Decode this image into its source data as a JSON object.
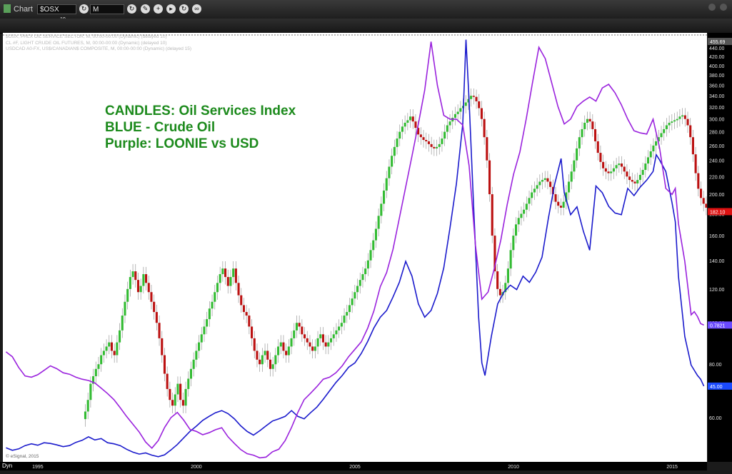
{
  "app": {
    "title": "Chart",
    "symbol": "$OSX",
    "symbol_superscript": "10",
    "interval": "M",
    "dyn_label": "Dyn",
    "copyright": "© eSignal, 2015"
  },
  "colors": {
    "candle_up": "#33bb33",
    "candle_down": "#bb1111",
    "crude": "#1a1acc",
    "loonie": "#9a22dd",
    "annotation": "#1c8a1c",
    "osx_tag": "#dd1111",
    "loonie_tag": "#6a4aff",
    "crude_tag": "#1a4aff"
  },
  "legend": [
    "$OSX, PHLX OIL SERVICE SECTOR, M, 00:00-00:00 (Dynamic) (delayed 10)",
    "CL #F, LIGHT CRUDE OIL FUTURES, M, 00:00-00:00 (Dynamic) (delayed 10)",
    "USDCAD A0-FX, US$/CANADIAN$ COMPOSITE, M, 00:00-00:00 (Dynamic) (delayed 15)"
  ],
  "annotation": [
    "CANDLES: Oil Services Index",
    "BLUE - Crude Oil",
    "Purple: LOONIE vs USD"
  ],
  "chart_data": {
    "type": "line",
    "y_scale": "log",
    "ylim": [
      48,
      470
    ],
    "xlim": [
      1993.9,
      2016.1
    ],
    "y_ticks": [
      "440.00",
      "420.00",
      "400.00",
      "380.00",
      "360.00",
      "340.00",
      "320.00",
      "300.00",
      "280.00",
      "260.00",
      "240.00",
      "220.00",
      "200.00",
      "180.00",
      "160.00",
      "140.00",
      "120.00",
      "100.00",
      "80.00",
      "60.00"
    ],
    "y_tick_values": [
      440,
      420,
      400,
      380,
      360,
      340,
      320,
      300,
      280,
      260,
      240,
      220,
      200,
      180,
      160,
      140,
      120,
      100,
      80,
      60
    ],
    "x_ticks": [
      "1995",
      "2000",
      "2005",
      "2010",
      "2015"
    ],
    "x_tick_values": [
      1995,
      2000,
      2005,
      2010,
      2015
    ],
    "top_label": "455.69",
    "last_values": {
      "osx": "182.10",
      "loonie": "0.7821",
      "crude": "45.00"
    },
    "candles": {
      "name": "OSX",
      "x_start": 1996.5,
      "x_step": 0.0833,
      "close": [
        62,
        66,
        72,
        75,
        78,
        80,
        84,
        86,
        88,
        90,
        86,
        84,
        90,
        96,
        104,
        112,
        120,
        128,
        132,
        126,
        118,
        122,
        130,
        124,
        118,
        112,
        106,
        100,
        92,
        84,
        76,
        70,
        66,
        64,
        68,
        72,
        66,
        64,
        70,
        74,
        78,
        82,
        86,
        90,
        94,
        98,
        102,
        108,
        112,
        118,
        124,
        130,
        134,
        128,
        122,
        128,
        134,
        124,
        116,
        110,
        106,
        104,
        98,
        92,
        86,
        82,
        80,
        84,
        86,
        82,
        78,
        80,
        84,
        88,
        90,
        86,
        84,
        88,
        92,
        96,
        100,
        98,
        94,
        92,
        90,
        88,
        86,
        88,
        92,
        94,
        90,
        88,
        90,
        92,
        94,
        96,
        98,
        100,
        104,
        106,
        110,
        114,
        118,
        122,
        126,
        130,
        134,
        140,
        148,
        156,
        166,
        178,
        190,
        204,
        218,
        232,
        246,
        258,
        270,
        280,
        288,
        294,
        298,
        304,
        296,
        286,
        276,
        272,
        268,
        266,
        262,
        258,
        256,
        258,
        262,
        270,
        280,
        290,
        296,
        302,
        308,
        312,
        318,
        322,
        328,
        334,
        340,
        338,
        330,
        318,
        300,
        272,
        240,
        200,
        160,
        132,
        120,
        116,
        118,
        124,
        134,
        148,
        160,
        170,
        176,
        180,
        184,
        190,
        196,
        202,
        206,
        210,
        214,
        216,
        218,
        214,
        208,
        200,
        192,
        188,
        186,
        192,
        202,
        214,
        226,
        240,
        256,
        272,
        284,
        294,
        300,
        296,
        284,
        266,
        250,
        238,
        230,
        226,
        224,
        226,
        230,
        234,
        236,
        232,
        226,
        220,
        216,
        214,
        212,
        216,
        222,
        228,
        236,
        244,
        252,
        260,
        266,
        272,
        278,
        284,
        290,
        294,
        296,
        298,
        300,
        304,
        306,
        300,
        290,
        272,
        248,
        224,
        206,
        196,
        190,
        186,
        184,
        182.1
      ]
    },
    "series": [
      {
        "name": "BLUE - Crude Oil",
        "values": [
          [
            1994.0,
            51.0
          ],
          [
            1994.2,
            50.3
          ],
          [
            1994.4,
            50.7
          ],
          [
            1994.6,
            51.6
          ],
          [
            1994.8,
            52.1
          ],
          [
            1995.0,
            51.7
          ],
          [
            1995.2,
            52.4
          ],
          [
            1995.4,
            52.2
          ],
          [
            1995.6,
            51.8
          ],
          [
            1995.8,
            51.3
          ],
          [
            1996.0,
            51.6
          ],
          [
            1996.2,
            52.5
          ],
          [
            1996.4,
            53.1
          ],
          [
            1996.6,
            54.1
          ],
          [
            1996.8,
            53.2
          ],
          [
            1997.0,
            53.6
          ],
          [
            1997.2,
            52.4
          ],
          [
            1997.4,
            52.1
          ],
          [
            1997.6,
            51.6
          ],
          [
            1997.8,
            50.6
          ],
          [
            1998.0,
            49.8
          ],
          [
            1998.2,
            49.3
          ],
          [
            1998.4,
            49.6
          ],
          [
            1998.6,
            49.0
          ],
          [
            1998.8,
            48.6
          ],
          [
            1999.0,
            49.1
          ],
          [
            1999.2,
            50.4
          ],
          [
            1999.4,
            51.9
          ],
          [
            1999.6,
            53.8
          ],
          [
            1999.8,
            55.7
          ],
          [
            2000.0,
            57.3
          ],
          [
            2000.2,
            59.1
          ],
          [
            2000.4,
            60.4
          ],
          [
            2000.6,
            61.6
          ],
          [
            2000.8,
            62.3
          ],
          [
            2001.0,
            61.3
          ],
          [
            2001.2,
            59.6
          ],
          [
            2001.4,
            57.4
          ],
          [
            2001.6,
            55.7
          ],
          [
            2001.8,
            54.6
          ],
          [
            2002.0,
            55.9
          ],
          [
            2002.2,
            57.4
          ],
          [
            2002.4,
            58.9
          ],
          [
            2002.6,
            59.6
          ],
          [
            2002.8,
            60.4
          ],
          [
            2003.0,
            62.3
          ],
          [
            2003.2,
            60.4
          ],
          [
            2003.4,
            59.6
          ],
          [
            2003.6,
            61.6
          ],
          [
            2003.8,
            63.5
          ],
          [
            2004.0,
            66.2
          ],
          [
            2004.2,
            69.3
          ],
          [
            2004.4,
            72.5
          ],
          [
            2004.6,
            75.3
          ],
          [
            2004.8,
            78.7
          ],
          [
            2005.0,
            80.6
          ],
          [
            2005.2,
            84.8
          ],
          [
            2005.4,
            90.4
          ],
          [
            2005.6,
            97.3
          ],
          [
            2005.8,
            103.1
          ],
          [
            2006.0,
            106.9
          ],
          [
            2006.2,
            114.9
          ],
          [
            2006.4,
            124.4
          ],
          [
            2006.6,
            139.3
          ],
          [
            2006.8,
            128.6
          ],
          [
            2007.0,
            110.8
          ],
          [
            2007.2,
            103.1
          ],
          [
            2007.4,
            106.9
          ],
          [
            2007.6,
            117.2
          ],
          [
            2007.8,
            134.5
          ],
          [
            2008.0,
            167.2
          ],
          [
            2008.2,
            211.6
          ],
          [
            2008.4,
            292.0
          ],
          [
            2008.5,
            460.0
          ],
          [
            2008.6,
            330.3
          ],
          [
            2008.75,
            180.7
          ],
          [
            2008.9,
            103.1
          ],
          [
            2009.0,
            80.6
          ],
          [
            2009.1,
            75.3
          ],
          [
            2009.3,
            92.9
          ],
          [
            2009.5,
            110.8
          ],
          [
            2009.7,
            118.1
          ],
          [
            2009.9,
            122.5
          ],
          [
            2010.1,
            119.6
          ],
          [
            2010.3,
            128.6
          ],
          [
            2010.5,
            124.4
          ],
          [
            2010.7,
            131.4
          ],
          [
            2010.9,
            142.5
          ],
          [
            2011.1,
            175.8
          ],
          [
            2011.3,
            211.6
          ],
          [
            2011.5,
            242.4
          ],
          [
            2011.6,
            201.6
          ],
          [
            2011.8,
            179.1
          ],
          [
            2012.0,
            186.9
          ],
          [
            2012.2,
            164.0
          ],
          [
            2012.4,
            147.9
          ],
          [
            2012.6,
            209.0
          ],
          [
            2012.8,
            201.6
          ],
          [
            2013.0,
            187.4
          ],
          [
            2013.2,
            180.7
          ],
          [
            2013.4,
            179.1
          ],
          [
            2013.6,
            206.4
          ],
          [
            2013.8,
            198.5
          ],
          [
            2014.0,
            208.1
          ],
          [
            2014.2,
            215.8
          ],
          [
            2014.4,
            226.1
          ],
          [
            2014.5,
            247.5
          ],
          [
            2014.6,
            240.9
          ],
          [
            2014.8,
            226.1
          ],
          [
            2015.0,
            190.7
          ],
          [
            2015.1,
            172.4
          ],
          [
            2015.2,
            128.6
          ],
          [
            2015.4,
            92.9
          ],
          [
            2015.6,
            79.6
          ],
          [
            2015.8,
            75.3
          ],
          [
            2015.9,
            73.8
          ],
          [
            2016.0,
            71.1
          ]
        ]
      },
      {
        "name": "Purple: LOONIE vs USD",
        "values": [
          [
            1994.0,
            85.5
          ],
          [
            1994.2,
            83.3
          ],
          [
            1994.4,
            78.6
          ],
          [
            1994.6,
            75.1
          ],
          [
            1994.8,
            74.6
          ],
          [
            1995.0,
            75.6
          ],
          [
            1995.2,
            77.4
          ],
          [
            1995.4,
            79.3
          ],
          [
            1995.6,
            78.1
          ],
          [
            1995.8,
            76.4
          ],
          [
            1996.0,
            75.8
          ],
          [
            1996.2,
            74.6
          ],
          [
            1996.4,
            73.8
          ],
          [
            1996.6,
            73.3
          ],
          [
            1996.8,
            72.3
          ],
          [
            1997.0,
            70.3
          ],
          [
            1997.2,
            68.3
          ],
          [
            1997.4,
            66.1
          ],
          [
            1997.6,
            63.3
          ],
          [
            1997.8,
            60.4
          ],
          [
            1998.0,
            57.9
          ],
          [
            1998.2,
            55.5
          ],
          [
            1998.4,
            52.6
          ],
          [
            1998.6,
            50.9
          ],
          [
            1998.8,
            53.0
          ],
          [
            1999.0,
            56.9
          ],
          [
            1999.2,
            60.0
          ],
          [
            1999.4,
            61.7
          ],
          [
            1999.6,
            59.2
          ],
          [
            1999.8,
            56.3
          ],
          [
            2000.0,
            55.7
          ],
          [
            2000.2,
            54.7
          ],
          [
            2000.4,
            55.3
          ],
          [
            2000.6,
            56.2
          ],
          [
            2000.8,
            56.8
          ],
          [
            2001.0,
            54.1
          ],
          [
            2001.2,
            52.2
          ],
          [
            2001.4,
            50.5
          ],
          [
            2001.6,
            49.4
          ],
          [
            2001.8,
            49.0
          ],
          [
            2002.0,
            48.3
          ],
          [
            2002.2,
            48.5
          ],
          [
            2002.4,
            49.9
          ],
          [
            2002.6,
            50.6
          ],
          [
            2002.8,
            53.0
          ],
          [
            2003.0,
            56.9
          ],
          [
            2003.2,
            61.7
          ],
          [
            2003.4,
            66.1
          ],
          [
            2003.6,
            68.4
          ],
          [
            2003.8,
            70.9
          ],
          [
            2004.0,
            73.8
          ],
          [
            2004.2,
            74.6
          ],
          [
            2004.4,
            76.4
          ],
          [
            2004.6,
            79.3
          ],
          [
            2004.8,
            83.3
          ],
          [
            2005.0,
            86.7
          ],
          [
            2005.2,
            90.3
          ],
          [
            2005.4,
            97.1
          ],
          [
            2005.6,
            106.7
          ],
          [
            2005.8,
            121.5
          ],
          [
            2006.0,
            131.2
          ],
          [
            2006.2,
            148.6
          ],
          [
            2006.4,
            175.8
          ],
          [
            2006.6,
            208.1
          ],
          [
            2006.8,
            245.8
          ],
          [
            2007.0,
            292.0
          ],
          [
            2007.2,
            350.5
          ],
          [
            2007.4,
            455.0
          ],
          [
            2007.6,
            359.4
          ],
          [
            2007.8,
            305.9
          ],
          [
            2008.0,
            299.8
          ],
          [
            2008.2,
            299.8
          ],
          [
            2008.4,
            290.4
          ],
          [
            2008.6,
            233.0
          ],
          [
            2008.8,
            151.8
          ],
          [
            2009.0,
            113.6
          ],
          [
            2009.2,
            118.1
          ],
          [
            2009.4,
            134.5
          ],
          [
            2009.6,
            156.3
          ],
          [
            2009.8,
            189.1
          ],
          [
            2010.0,
            222.6
          ],
          [
            2010.2,
            251.1
          ],
          [
            2010.4,
            299.8
          ],
          [
            2010.6,
            365.3
          ],
          [
            2010.8,
            441.6
          ],
          [
            2011.0,
            415.4
          ],
          [
            2011.2,
            365.3
          ],
          [
            2011.4,
            320.8
          ],
          [
            2011.6,
            292.0
          ],
          [
            2011.8,
            299.8
          ],
          [
            2012.0,
            320.8
          ],
          [
            2012.2,
            330.3
          ],
          [
            2012.4,
            337.6
          ],
          [
            2012.6,
            330.3
          ],
          [
            2012.8,
            354.6
          ],
          [
            2013.0,
            361.6
          ],
          [
            2013.2,
            345.5
          ],
          [
            2013.4,
            323.9
          ],
          [
            2013.6,
            299.8
          ],
          [
            2013.8,
            281.5
          ],
          [
            2014.0,
            278.3
          ],
          [
            2014.2,
            276.6
          ],
          [
            2014.4,
            299.8
          ],
          [
            2014.6,
            257.9
          ],
          [
            2014.8,
            206.4
          ],
          [
            2015.0,
            199.8
          ],
          [
            2015.1,
            206.4
          ],
          [
            2015.2,
            170.8
          ],
          [
            2015.4,
            139.3
          ],
          [
            2015.6,
            104.4
          ],
          [
            2015.7,
            106.2
          ],
          [
            2015.8,
            103.4
          ],
          [
            2015.9,
            99.6
          ],
          [
            2016.0,
            98.8
          ]
        ]
      }
    ]
  }
}
